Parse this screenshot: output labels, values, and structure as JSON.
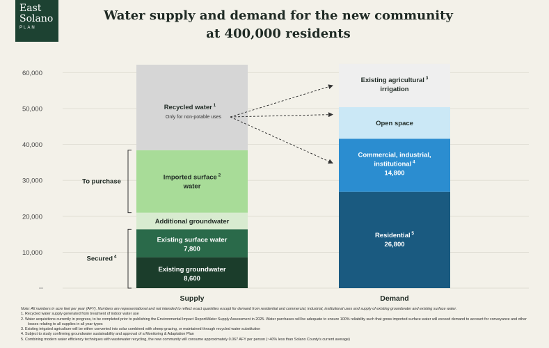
{
  "logo": {
    "line1": "East",
    "line2": "Solano",
    "line3": "PLAN"
  },
  "title": {
    "line1": "Water supply and demand for the new community",
    "line2": "at 400,000 residents"
  },
  "chart_data": {
    "type": "bar",
    "stacked": true,
    "categories": [
      "Supply",
      "Demand"
    ],
    "ylim": [
      0,
      62000
    ],
    "yticks": [
      0,
      10000,
      20000,
      30000,
      40000,
      50000,
      60000
    ],
    "ytick_labels": [
      "",
      "10,000",
      "20,000",
      "30,000",
      "40,000",
      "50,000",
      "60,000"
    ],
    "grid": true,
    "supply": [
      {
        "label": "Existing groundwater",
        "value": 8600,
        "value_label": "8,600",
        "color": "#1b3d2b",
        "text_color": "#ffffff"
      },
      {
        "label": "Existing surface water",
        "value": 7800,
        "value_label": "7,800",
        "color": "#2a6a4a",
        "text_color": "#ffffff"
      },
      {
        "label": "Additional groundwater",
        "value": 4600,
        "color": "#d8ebd0",
        "text_color": "#1f2a24"
      },
      {
        "label": "Imported surface water",
        "sup": "2",
        "value": 17400,
        "color": "#a8dc98",
        "text_color": "#1f2a24"
      },
      {
        "label": "Recycled water",
        "sup": "1",
        "sublabel": "Only for non-potable uses",
        "value": 23800,
        "color": "#d6d6d6",
        "text_color": "#1f2a24"
      }
    ],
    "demand": [
      {
        "label": "Residential",
        "sup": "5",
        "value": 26800,
        "value_label": "26,800",
        "color": "#1a5a80",
        "text_color": "#ffffff"
      },
      {
        "label": "Commercial, industrial, institutional",
        "sup": "4",
        "value": 14800,
        "value_label": "14,800",
        "color": "#2b8dd0",
        "text_color": "#ffffff"
      },
      {
        "label": "Open space",
        "value": 8800,
        "color": "#cbe8f6",
        "text_color": "#1f2a24"
      },
      {
        "label": "Existing agricultural irrigation",
        "sup": "3",
        "value": 12000,
        "color": "#efefef",
        "text_color": "#1f2a24"
      }
    ],
    "brackets": [
      {
        "label": "To purchase",
        "from": 21000,
        "to": 38400
      },
      {
        "label": "Secured",
        "sup": "4",
        "from": 0,
        "to": 16400
      }
    ]
  },
  "notes": {
    "head": "Note: All numbers in acre feet per year (AFY). Numbers are representational and not intended to reflect exact quantities except for demand from residential and commercial, industrial, institutional uses and supply of existing groundwater and existing surface water.",
    "items": [
      "1.   Recycled water supply generated from treatment of indoor water use",
      "2.   Water acquisitions currently in progress, to be completed prior to publishing the Environmental Impact Report/Water Supply Assessment in 2025. Water purchases will be adequate to ensure 100% reliability such that gross imported surface water will exceed demand to account for conveyance and other losses relating to all supplies in all year types",
      "3.   Existing irrigated agriculture will be either converted into solar combined with sheep grazing, or maintained through recycled water substitution",
      "4.   Subject to study confirming groundwater sustainability and approval of a Monitoring & Adaptation Plan",
      "5.   Combining modern water efficiency techniques with wastewater recycling, the new community will consume approximately 0.067 AFY per person (~40% less than Solano County's current average)"
    ]
  }
}
